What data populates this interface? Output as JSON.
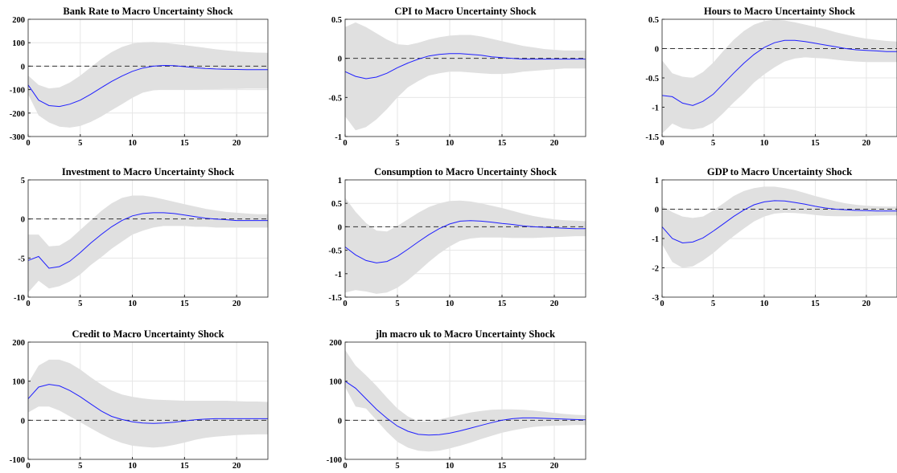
{
  "chart_data": [
    {
      "type": "line",
      "title": "Bank Rate to Macro Uncertainty Shock",
      "xlim": [
        0,
        23
      ],
      "ylim": [
        -300,
        200
      ],
      "xticks": [
        0,
        5,
        10,
        15,
        20
      ],
      "yticks": [
        -300,
        -200,
        -100,
        0,
        100,
        200
      ],
      "ytick_labels": [
        "-300",
        "-200",
        "-100",
        "0",
        "100",
        "200"
      ],
      "grid": true,
      "zero_line": true,
      "x": [
        0,
        1,
        2,
        3,
        4,
        5,
        6,
        7,
        8,
        9,
        10,
        11,
        12,
        13,
        14,
        15,
        16,
        17,
        18,
        19,
        20,
        21,
        22,
        23
      ],
      "irf": [
        -80,
        -145,
        -168,
        -172,
        -162,
        -145,
        -120,
        -92,
        -65,
        -42,
        -22,
        -8,
        0,
        3,
        2,
        -2,
        -6,
        -10,
        -12,
        -13,
        -14,
        -15,
        -15,
        -15
      ],
      "upper": [
        -40,
        -80,
        -95,
        -90,
        -70,
        -40,
        -5,
        30,
        60,
        82,
        96,
        102,
        103,
        100,
        95,
        90,
        84,
        78,
        72,
        67,
        63,
        60,
        58,
        57
      ],
      "lower": [
        -120,
        -210,
        -240,
        -258,
        -262,
        -255,
        -238,
        -215,
        -188,
        -162,
        -135,
        -113,
        -103,
        -100,
        -100,
        -100,
        -100,
        -99,
        -98,
        -97,
        -97,
        -96,
        -96,
        -96
      ]
    },
    {
      "type": "line",
      "title": "CPI to Macro Uncertainty Shock",
      "xlim": [
        0,
        23
      ],
      "ylim": [
        -1,
        0.5
      ],
      "xticks": [
        0,
        5,
        10,
        15,
        20
      ],
      "yticks": [
        -1,
        -0.5,
        0,
        0.5
      ],
      "ytick_labels": [
        "-1",
        "-0.5",
        "0",
        "0.5"
      ],
      "grid": true,
      "zero_line": true,
      "x": [
        0,
        1,
        2,
        3,
        4,
        5,
        6,
        7,
        8,
        9,
        10,
        11,
        12,
        13,
        14,
        15,
        16,
        17,
        18,
        19,
        20,
        21,
        22,
        23
      ],
      "irf": [
        -0.17,
        -0.23,
        -0.26,
        -0.24,
        -0.19,
        -0.12,
        -0.06,
        -0.01,
        0.03,
        0.05,
        0.06,
        0.06,
        0.05,
        0.04,
        0.02,
        0.01,
        0.0,
        -0.01,
        -0.01,
        -0.01,
        -0.01,
        -0.01,
        -0.01,
        -0.01
      ],
      "upper": [
        0.4,
        0.46,
        0.4,
        0.32,
        0.24,
        0.18,
        0.17,
        0.2,
        0.24,
        0.27,
        0.29,
        0.3,
        0.3,
        0.28,
        0.25,
        0.22,
        0.19,
        0.16,
        0.14,
        0.12,
        0.11,
        0.1,
        0.1,
        0.1
      ],
      "lower": [
        -0.74,
        -0.92,
        -0.88,
        -0.78,
        -0.65,
        -0.5,
        -0.37,
        -0.29,
        -0.22,
        -0.19,
        -0.17,
        -0.17,
        -0.18,
        -0.19,
        -0.2,
        -0.2,
        -0.19,
        -0.17,
        -0.16,
        -0.15,
        -0.14,
        -0.13,
        -0.13,
        -0.13
      ]
    },
    {
      "type": "line",
      "title": "Hours to Macro Uncertainty Shock",
      "xlim": [
        0,
        23
      ],
      "ylim": [
        -1.5,
        0.5
      ],
      "xticks": [
        0,
        5,
        10,
        15,
        20
      ],
      "yticks": [
        -1.5,
        -1,
        -0.5,
        0,
        0.5
      ],
      "ytick_labels": [
        "-1.5",
        "-1",
        "-0.5",
        "0",
        "0.5"
      ],
      "grid": true,
      "zero_line": true,
      "x": [
        0,
        1,
        2,
        3,
        4,
        5,
        6,
        7,
        8,
        9,
        10,
        11,
        12,
        13,
        14,
        15,
        16,
        17,
        18,
        19,
        20,
        21,
        22,
        23
      ],
      "irf": [
        -0.8,
        -0.82,
        -0.93,
        -0.97,
        -0.9,
        -0.78,
        -0.6,
        -0.42,
        -0.25,
        -0.1,
        0.02,
        0.1,
        0.14,
        0.14,
        0.12,
        0.09,
        0.06,
        0.03,
        0.0,
        -0.02,
        -0.03,
        -0.04,
        -0.05,
        -0.05
      ],
      "upper": [
        -0.2,
        -0.42,
        -0.48,
        -0.5,
        -0.4,
        -0.24,
        -0.04,
        0.15,
        0.3,
        0.41,
        0.47,
        0.49,
        0.48,
        0.45,
        0.41,
        0.37,
        0.33,
        0.28,
        0.24,
        0.2,
        0.17,
        0.15,
        0.13,
        0.12
      ],
      "lower": [
        -1.45,
        -1.28,
        -1.36,
        -1.38,
        -1.35,
        -1.26,
        -1.1,
        -0.92,
        -0.76,
        -0.58,
        -0.44,
        -0.32,
        -0.22,
        -0.17,
        -0.15,
        -0.16,
        -0.17,
        -0.19,
        -0.21,
        -0.22,
        -0.23,
        -0.23,
        -0.23,
        -0.23
      ]
    },
    {
      "type": "line",
      "title": "Investment to Macro Uncertainty Shock",
      "xlim": [
        0,
        23
      ],
      "ylim": [
        -10,
        5
      ],
      "xticks": [
        0,
        5,
        10,
        15,
        20
      ],
      "yticks": [
        -10,
        -5,
        0,
        5
      ],
      "ytick_labels": [
        "-10",
        "-5",
        "0",
        "5"
      ],
      "grid": true,
      "zero_line": true,
      "x": [
        0,
        1,
        2,
        3,
        4,
        5,
        6,
        7,
        8,
        9,
        10,
        11,
        12,
        13,
        14,
        15,
        16,
        17,
        18,
        19,
        20,
        21,
        22,
        23
      ],
      "irf": [
        -5.3,
        -4.8,
        -6.3,
        -6.1,
        -5.4,
        -4.3,
        -3.1,
        -2,
        -1,
        -0.2,
        0.4,
        0.7,
        0.8,
        0.8,
        0.7,
        0.5,
        0.3,
        0.1,
        0,
        -0.1,
        -0.2,
        -0.2,
        -0.2,
        -0.2
      ],
      "upper": [
        -2,
        -2,
        -3.5,
        -3.4,
        -2.6,
        -1.4,
        -0.2,
        1,
        2,
        2.7,
        3,
        3,
        2.8,
        2.5,
        2.2,
        1.9,
        1.6,
        1.3,
        1.1,
        0.9,
        0.8,
        0.7,
        0.6,
        0.6
      ],
      "lower": [
        -9.4,
        -7.9,
        -8.9,
        -8.6,
        -8,
        -7.1,
        -5.9,
        -4.9,
        -3.8,
        -2.9,
        -2,
        -1.5,
        -1.1,
        -0.9,
        -0.9,
        -0.9,
        -1,
        -1,
        -1.1,
        -1.1,
        -1.1,
        -1.1,
        -1.1,
        -1.1
      ]
    },
    {
      "type": "line",
      "title": "Consumption to Macro Uncertainty Shock",
      "xlim": [
        0,
        23
      ],
      "ylim": [
        -1.5,
        1
      ],
      "xticks": [
        0,
        5,
        10,
        15,
        20
      ],
      "yticks": [
        -1.5,
        -1,
        -0.5,
        0,
        0.5,
        1
      ],
      "ytick_labels": [
        "-1.5",
        "-1",
        "-0.5",
        "0",
        "0.5",
        "1"
      ],
      "grid": true,
      "zero_line": true,
      "x": [
        0,
        1,
        2,
        3,
        4,
        5,
        6,
        7,
        8,
        9,
        10,
        11,
        12,
        13,
        14,
        15,
        16,
        17,
        18,
        19,
        20,
        21,
        22,
        23
      ],
      "irf": [
        -0.43,
        -0.6,
        -0.72,
        -0.77,
        -0.74,
        -0.63,
        -0.48,
        -0.32,
        -0.17,
        -0.04,
        0.06,
        0.12,
        0.13,
        0.12,
        0.1,
        0.07,
        0.05,
        0.02,
        0,
        -0.01,
        -0.02,
        -0.03,
        -0.04,
        -0.04
      ],
      "upper": [
        0.62,
        0.32,
        0.08,
        -0.08,
        -0.1,
        0.02,
        0.16,
        0.3,
        0.42,
        0.5,
        0.55,
        0.56,
        0.54,
        0.5,
        0.45,
        0.4,
        0.34,
        0.28,
        0.23,
        0.19,
        0.16,
        0.14,
        0.13,
        0.12
      ],
      "lower": [
        -1.4,
        -1.35,
        -1.38,
        -1.43,
        -1.4,
        -1.3,
        -1.14,
        -0.95,
        -0.75,
        -0.57,
        -0.42,
        -0.3,
        -0.25,
        -0.23,
        -0.23,
        -0.23,
        -0.24,
        -0.24,
        -0.24,
        -0.23,
        -0.22,
        -0.21,
        -0.2,
        -0.2
      ]
    },
    {
      "type": "line",
      "title": "GDP to Macro Uncertainty Shock",
      "xlim": [
        0,
        23
      ],
      "ylim": [
        -3,
        1
      ],
      "xticks": [
        0,
        5,
        10,
        15,
        20
      ],
      "yticks": [
        -3,
        -2,
        -1,
        0,
        1
      ],
      "ytick_labels": [
        "-3",
        "-2",
        "-1",
        "0",
        "1"
      ],
      "grid": true,
      "zero_line": true,
      "x": [
        0,
        1,
        2,
        3,
        4,
        5,
        6,
        7,
        8,
        9,
        10,
        11,
        12,
        13,
        14,
        15,
        16,
        17,
        18,
        19,
        20,
        21,
        22,
        23
      ],
      "irf": [
        -0.6,
        -1,
        -1.15,
        -1.12,
        -0.98,
        -0.75,
        -0.5,
        -0.25,
        -0.03,
        0.15,
        0.25,
        0.29,
        0.28,
        0.23,
        0.17,
        0.1,
        0.04,
        0,
        -0.02,
        -0.04,
        -0.05,
        -0.06,
        -0.06,
        -0.06
      ],
      "upper": [
        0.1,
        -0.1,
        -0.25,
        -0.3,
        -0.25,
        -0.05,
        0.2,
        0.45,
        0.62,
        0.72,
        0.77,
        0.77,
        0.72,
        0.65,
        0.55,
        0.45,
        0.36,
        0.27,
        0.2,
        0.15,
        0.12,
        0.1,
        0.09,
        0.09
      ],
      "lower": [
        -1.2,
        -1.8,
        -2,
        -1.95,
        -1.75,
        -1.5,
        -1.2,
        -0.92,
        -0.66,
        -0.42,
        -0.25,
        -0.15,
        -0.12,
        -0.13,
        -0.16,
        -0.2,
        -0.23,
        -0.24,
        -0.24,
        -0.24,
        -0.23,
        -0.22,
        -0.21,
        -0.21
      ]
    },
    {
      "type": "line",
      "title": "Credit to Macro Uncertainty Shock",
      "xlim": [
        0,
        23
      ],
      "ylim": [
        -100,
        200
      ],
      "xticks": [
        0,
        5,
        10,
        15,
        20
      ],
      "yticks": [
        -100,
        0,
        100,
        200
      ],
      "ytick_labels": [
        "-100",
        "0",
        "100",
        "200"
      ],
      "grid": true,
      "zero_line": true,
      "x": [
        0,
        1,
        2,
        3,
        4,
        5,
        6,
        7,
        8,
        9,
        10,
        11,
        12,
        13,
        14,
        15,
        16,
        17,
        18,
        19,
        20,
        21,
        22,
        23
      ],
      "irf": [
        55,
        85,
        92,
        88,
        76,
        60,
        42,
        24,
        10,
        2,
        -4,
        -7,
        -8,
        -7,
        -5,
        -2,
        1,
        3,
        4,
        4,
        4,
        4,
        4,
        4
      ],
      "upper": [
        95,
        140,
        155,
        155,
        146,
        130,
        110,
        92,
        76,
        66,
        60,
        56,
        53,
        52,
        51,
        50,
        50,
        50,
        50,
        50,
        49,
        48,
        48,
        47
      ],
      "lower": [
        20,
        35,
        35,
        25,
        10,
        -5,
        -20,
        -35,
        -48,
        -58,
        -65,
        -68,
        -70,
        -68,
        -63,
        -57,
        -50,
        -45,
        -42,
        -40,
        -38,
        -37,
        -36,
        -36
      ]
    },
    {
      "type": "line",
      "title": "jln macro uk to Macro Uncertainty Shock",
      "xlim": [
        0,
        23
      ],
      "ylim": [
        -100,
        200
      ],
      "xticks": [
        0,
        5,
        10,
        15,
        20
      ],
      "yticks": [
        -100,
        0,
        100,
        200
      ],
      "ytick_labels": [
        "-100",
        "0",
        "100",
        "200"
      ],
      "grid": true,
      "zero_line": true,
      "x": [
        0,
        1,
        2,
        3,
        4,
        5,
        6,
        7,
        8,
        9,
        10,
        11,
        12,
        13,
        14,
        15,
        16,
        17,
        18,
        19,
        20,
        21,
        22,
        23
      ],
      "irf": [
        100,
        82,
        55,
        28,
        5,
        -15,
        -28,
        -36,
        -38,
        -37,
        -33,
        -27,
        -20,
        -13,
        -6,
        0,
        4,
        6,
        6,
        5,
        4,
        3,
        2,
        1
      ],
      "upper": [
        180,
        140,
        115,
        88,
        58,
        30,
        10,
        -3,
        -3,
        2,
        8,
        14,
        20,
        24,
        27,
        28,
        28,
        27,
        25,
        22,
        19,
        16,
        14,
        13
      ],
      "lower": [
        85,
        35,
        30,
        0,
        -30,
        -55,
        -70,
        -78,
        -80,
        -78,
        -72,
        -65,
        -57,
        -48,
        -40,
        -32,
        -26,
        -21,
        -17,
        -15,
        -14,
        -13,
        -12,
        -12
      ]
    }
  ]
}
